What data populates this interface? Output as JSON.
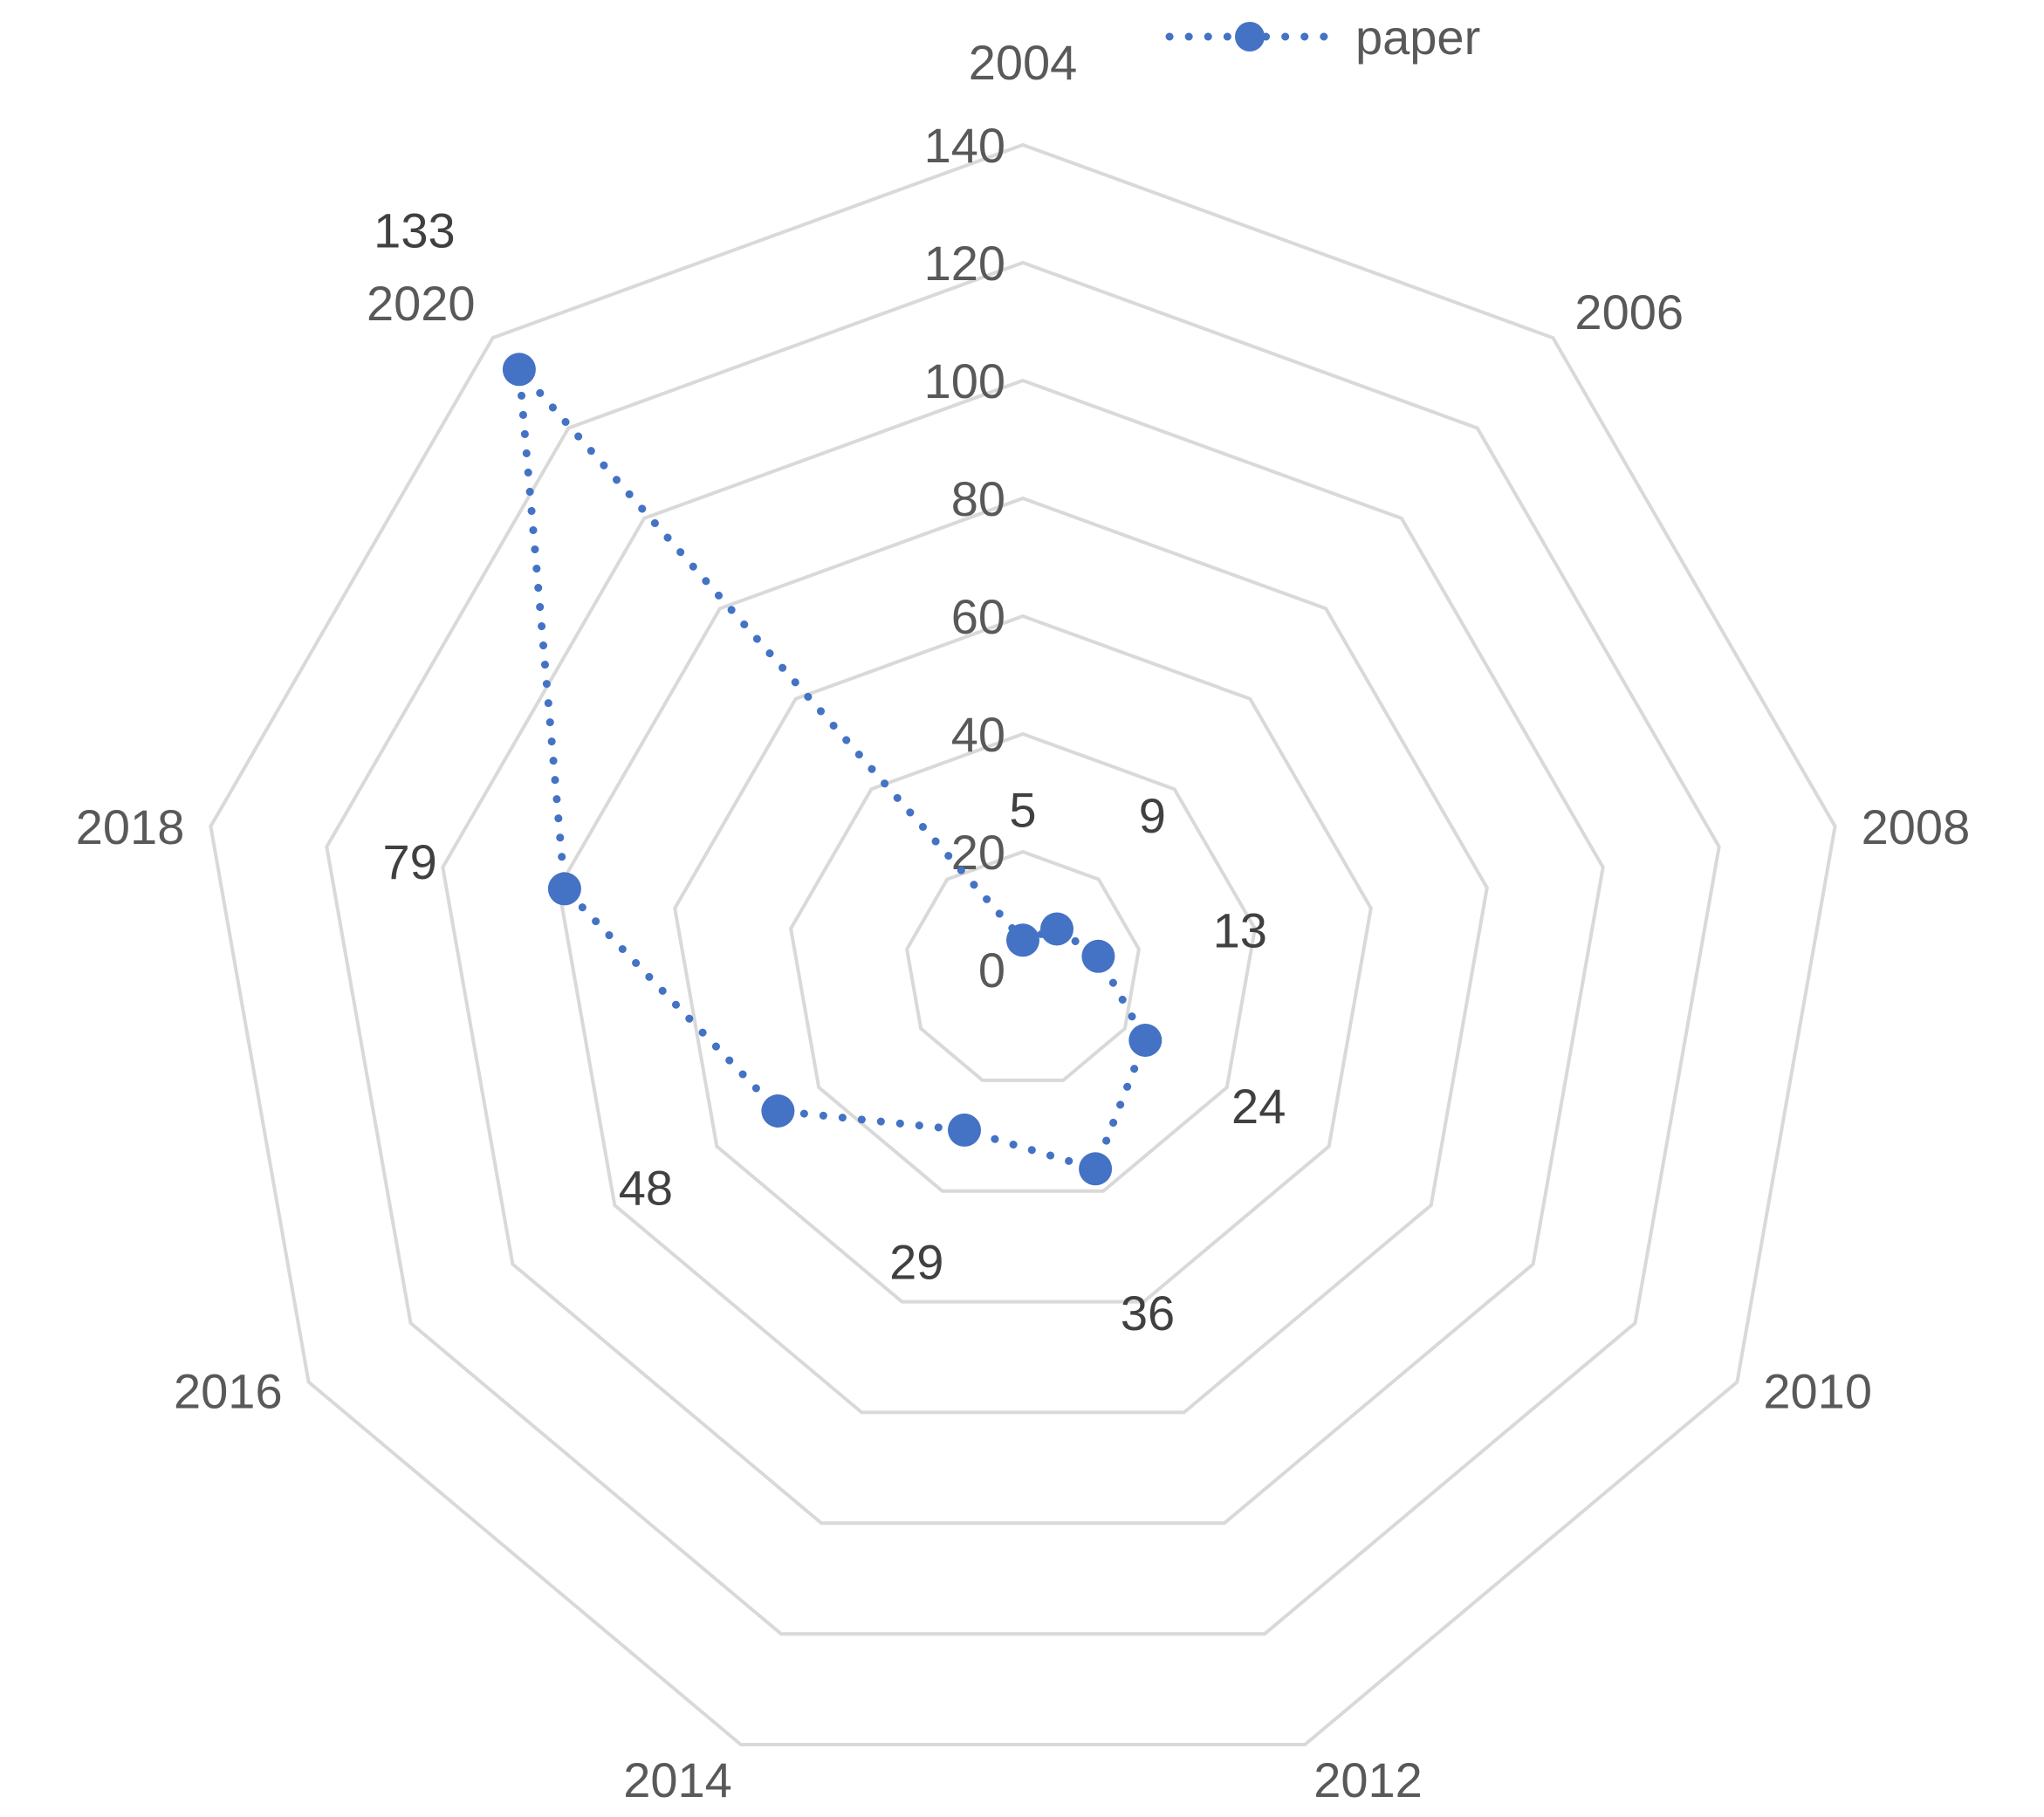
{
  "chart_data": {
    "type": "radar",
    "categories": [
      "2004",
      "2006",
      "2008",
      "2010",
      "2012",
      "2014",
      "2016",
      "2018",
      "2020"
    ],
    "series": [
      {
        "name": "paper",
        "values": [
          5,
          9,
          13,
          24,
          36,
          29,
          48,
          79,
          133
        ],
        "color": "#4472c4",
        "line_style": "dotted",
        "marker": "circle"
      }
    ],
    "data_labels": [
      "5",
      "9",
      "13",
      "24",
      "36",
      "29",
      "48",
      "79",
      "133"
    ],
    "radial_axis": {
      "min": 0,
      "max": 140,
      "step": 20,
      "tick_labels": [
        "0",
        "20",
        "40",
        "60",
        "80",
        "100",
        "120",
        "140"
      ]
    },
    "grid": true,
    "legend": {
      "position": "top",
      "entries": [
        "paper"
      ]
    }
  }
}
